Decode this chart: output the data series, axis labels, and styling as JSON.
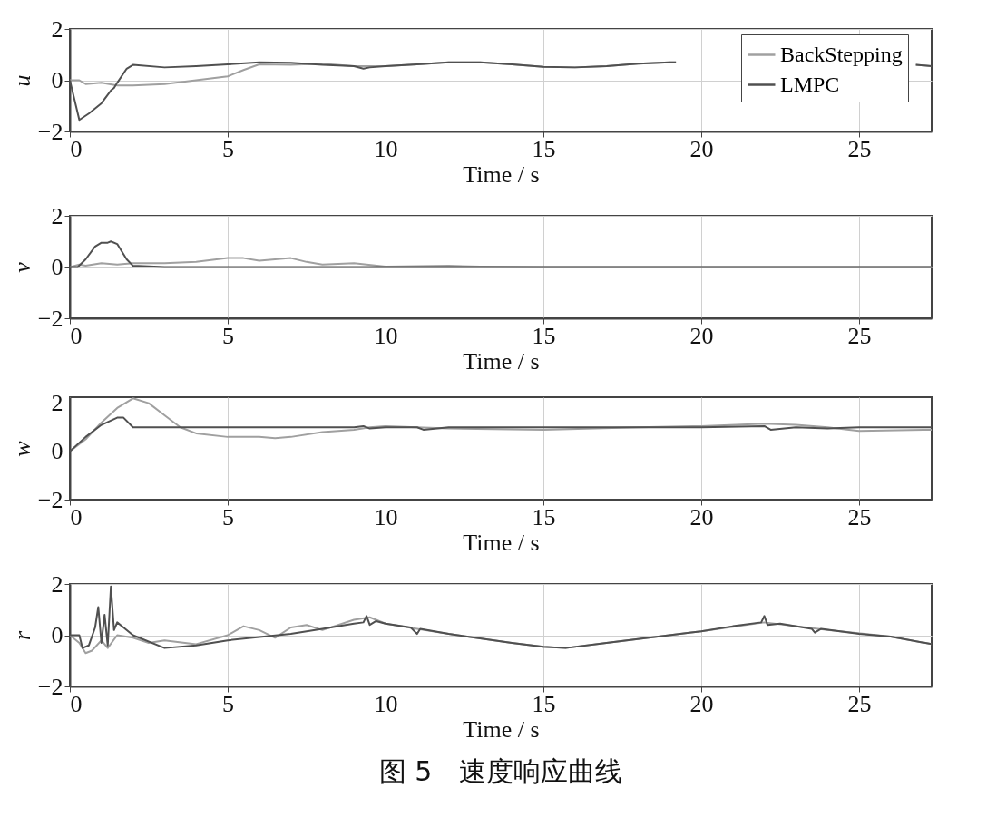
{
  "chart_data": [
    {
      "type": "line",
      "xlabel": "Time / s",
      "ylabel": "u",
      "xlim": [
        0,
        27.3
      ],
      "ylim": [
        -2,
        2
      ],
      "xticks": [
        0,
        5,
        10,
        15,
        20,
        25
      ],
      "yticks": [
        -2,
        0,
        2
      ],
      "grid": true,
      "legend": "top right",
      "series": [
        {
          "name": "BackStepping",
          "color": "#a0a0a0",
          "x": [
            0,
            0.3,
            0.5,
            1,
            1.5,
            2,
            3,
            4,
            5,
            5.5,
            6,
            7,
            8,
            9,
            10,
            11,
            12,
            13,
            14,
            15,
            16,
            17,
            18,
            19,
            19.2,
            20,
            26.8,
            27.3
          ],
          "values": [
            0,
            0,
            -0.15,
            -0.1,
            -0.2,
            -0.2,
            -0.15,
            0,
            0.15,
            0.4,
            0.62,
            0.6,
            0.65,
            0.55,
            0.55,
            0.62,
            0.7,
            0.7,
            0.62,
            0.52,
            0.5,
            0.55,
            0.65,
            0.7,
            0.7,
            null,
            0.6,
            0.55
          ]
        },
        {
          "name": "LMPC",
          "color": "#505050",
          "x": [
            0,
            0.3,
            0.6,
            1,
            1.3,
            1.4,
            1.5,
            1.8,
            2,
            3,
            4,
            5,
            6,
            7,
            8,
            9,
            9.3,
            9.5,
            10,
            11,
            12,
            13,
            14,
            15,
            16,
            17,
            18,
            19,
            19.2,
            20,
            26.8,
            27.3
          ],
          "values": [
            0,
            -1.55,
            -1.3,
            -0.9,
            -0.4,
            -0.3,
            -0.1,
            0.45,
            0.6,
            0.5,
            0.55,
            0.62,
            0.7,
            0.68,
            0.6,
            0.55,
            0.45,
            0.5,
            0.55,
            0.62,
            0.7,
            0.7,
            0.62,
            0.52,
            0.5,
            0.55,
            0.65,
            0.7,
            0.7,
            null,
            0.6,
            0.55
          ]
        }
      ]
    },
    {
      "type": "line",
      "xlabel": "Time / s",
      "ylabel": "v",
      "xlim": [
        0,
        27.3
      ],
      "ylim": [
        -2,
        2
      ],
      "xticks": [
        0,
        5,
        10,
        15,
        20,
        25
      ],
      "yticks": [
        -2,
        0,
        2
      ],
      "grid": true,
      "series": [
        {
          "name": "BackStepping",
          "color": "#a0a0a0",
          "x": [
            0,
            0.3,
            0.5,
            1,
            1.5,
            2,
            3,
            4,
            5,
            5.5,
            6,
            6.5,
            7,
            7.5,
            8,
            9,
            10,
            12,
            13,
            15,
            20,
            27.3
          ],
          "values": [
            0,
            0.1,
            0.05,
            0.15,
            0.1,
            0.15,
            0.15,
            0.2,
            0.35,
            0.35,
            0.25,
            0.3,
            0.35,
            0.2,
            0.1,
            0.15,
            0.02,
            0.05,
            0.02,
            0,
            0,
            0
          ]
        },
        {
          "name": "LMPC",
          "color": "#505050",
          "x": [
            0,
            0.25,
            0.5,
            0.8,
            1,
            1.2,
            1.3,
            1.5,
            1.8,
            2,
            3,
            10,
            20,
            27.3
          ],
          "values": [
            0,
            0,
            0.3,
            0.8,
            0.95,
            0.95,
            1.0,
            0.9,
            0.3,
            0.05,
            0,
            0,
            0,
            0
          ]
        }
      ]
    },
    {
      "type": "line",
      "xlabel": "Time / s",
      "ylabel": "w",
      "xlim": [
        0,
        27.3
      ],
      "ylim": [
        -2,
        2.25
      ],
      "xticks": [
        0,
        5,
        10,
        15,
        20,
        25
      ],
      "yticks": [
        -2,
        0,
        2
      ],
      "grid": true,
      "series": [
        {
          "name": "BackStepping",
          "color": "#a0a0a0",
          "x": [
            0,
            0.5,
            1,
            1.5,
            2,
            2.5,
            3,
            3.5,
            4,
            5,
            6,
            6.5,
            7,
            8,
            9,
            9.5,
            10,
            11,
            12,
            15,
            18,
            20,
            22,
            23,
            24,
            25,
            27.3
          ],
          "values": [
            0,
            0.5,
            1.2,
            1.8,
            2.2,
            2.0,
            1.5,
            1.0,
            0.75,
            0.6,
            0.6,
            0.55,
            0.6,
            0.8,
            0.9,
            1.0,
            1.05,
            1.0,
            0.95,
            0.9,
            1.0,
            1.05,
            1.15,
            1.1,
            1.0,
            0.85,
            0.9
          ]
        },
        {
          "name": "LMPC",
          "color": "#505050",
          "x": [
            0,
            0.5,
            1,
            1.5,
            1.7,
            2,
            3,
            9,
            9.3,
            9.5,
            10,
            11,
            11.2,
            12,
            15,
            20,
            22,
            22.2,
            23,
            24,
            25,
            27.3
          ],
          "values": [
            0,
            0.6,
            1.1,
            1.4,
            1.4,
            1.0,
            1.0,
            1.0,
            1.05,
            0.95,
            1.0,
            1.0,
            0.9,
            1.0,
            1.0,
            1.0,
            1.05,
            0.9,
            1.0,
            0.95,
            1.0,
            1.0
          ]
        }
      ]
    },
    {
      "type": "line",
      "xlabel": "Time / s",
      "ylabel": "r",
      "xlim": [
        0,
        27.3
      ],
      "ylim": [
        -2,
        2
      ],
      "xticks": [
        0,
        5,
        10,
        15,
        20,
        25
      ],
      "yticks": [
        -2,
        0,
        2
      ],
      "grid": true,
      "annotations": [
        "图 5　速度响应曲线"
      ],
      "series": [
        {
          "name": "BackStepping",
          "color": "#a0a0a0",
          "x": [
            0,
            0.3,
            0.5,
            0.7,
            1,
            1.2,
            1.5,
            2,
            2.5,
            3,
            4,
            5,
            5.5,
            6,
            6.5,
            7,
            7.5,
            8,
            9,
            9.5,
            10,
            11,
            12,
            14,
            15,
            15.7,
            17,
            20,
            22,
            24,
            26,
            27.3
          ],
          "values": [
            0,
            -0.3,
            -0.7,
            -0.6,
            -0.2,
            -0.5,
            0,
            -0.1,
            -0.3,
            -0.2,
            -0.35,
            0,
            0.35,
            0.2,
            -0.1,
            0.3,
            0.4,
            0.2,
            0.6,
            0.7,
            0.45,
            0.25,
            0.05,
            -0.3,
            -0.45,
            -0.5,
            -0.3,
            0.15,
            0.5,
            0.2,
            -0.05,
            -0.35
          ]
        },
        {
          "name": "LMPC",
          "color": "#505050",
          "x": [
            0,
            0.3,
            0.4,
            0.6,
            0.8,
            0.9,
            1.0,
            1.1,
            1.2,
            1.3,
            1.4,
            1.5,
            1.7,
            2,
            3,
            4,
            5,
            7,
            8,
            9,
            9.3,
            9.4,
            9.5,
            9.7,
            10,
            10.8,
            11,
            11.1,
            12,
            14,
            15,
            15.7,
            17,
            20,
            21,
            21.9,
            22,
            22.1,
            22.5,
            23.5,
            23.6,
            23.8,
            25,
            26,
            27.3
          ],
          "values": [
            0,
            0,
            -0.5,
            -0.4,
            0.3,
            1.1,
            -0.3,
            0.8,
            -0.4,
            1.9,
            0.2,
            0.5,
            0.3,
            0,
            -0.5,
            -0.4,
            -0.2,
            0.05,
            0.25,
            0.45,
            0.5,
            0.75,
            0.4,
            0.55,
            0.45,
            0.3,
            0.05,
            0.25,
            0.05,
            -0.3,
            -0.45,
            -0.5,
            -0.3,
            0.15,
            0.35,
            0.5,
            0.75,
            0.4,
            0.45,
            0.25,
            0.1,
            0.25,
            0.05,
            -0.05,
            -0.35
          ]
        }
      ]
    }
  ]
}
